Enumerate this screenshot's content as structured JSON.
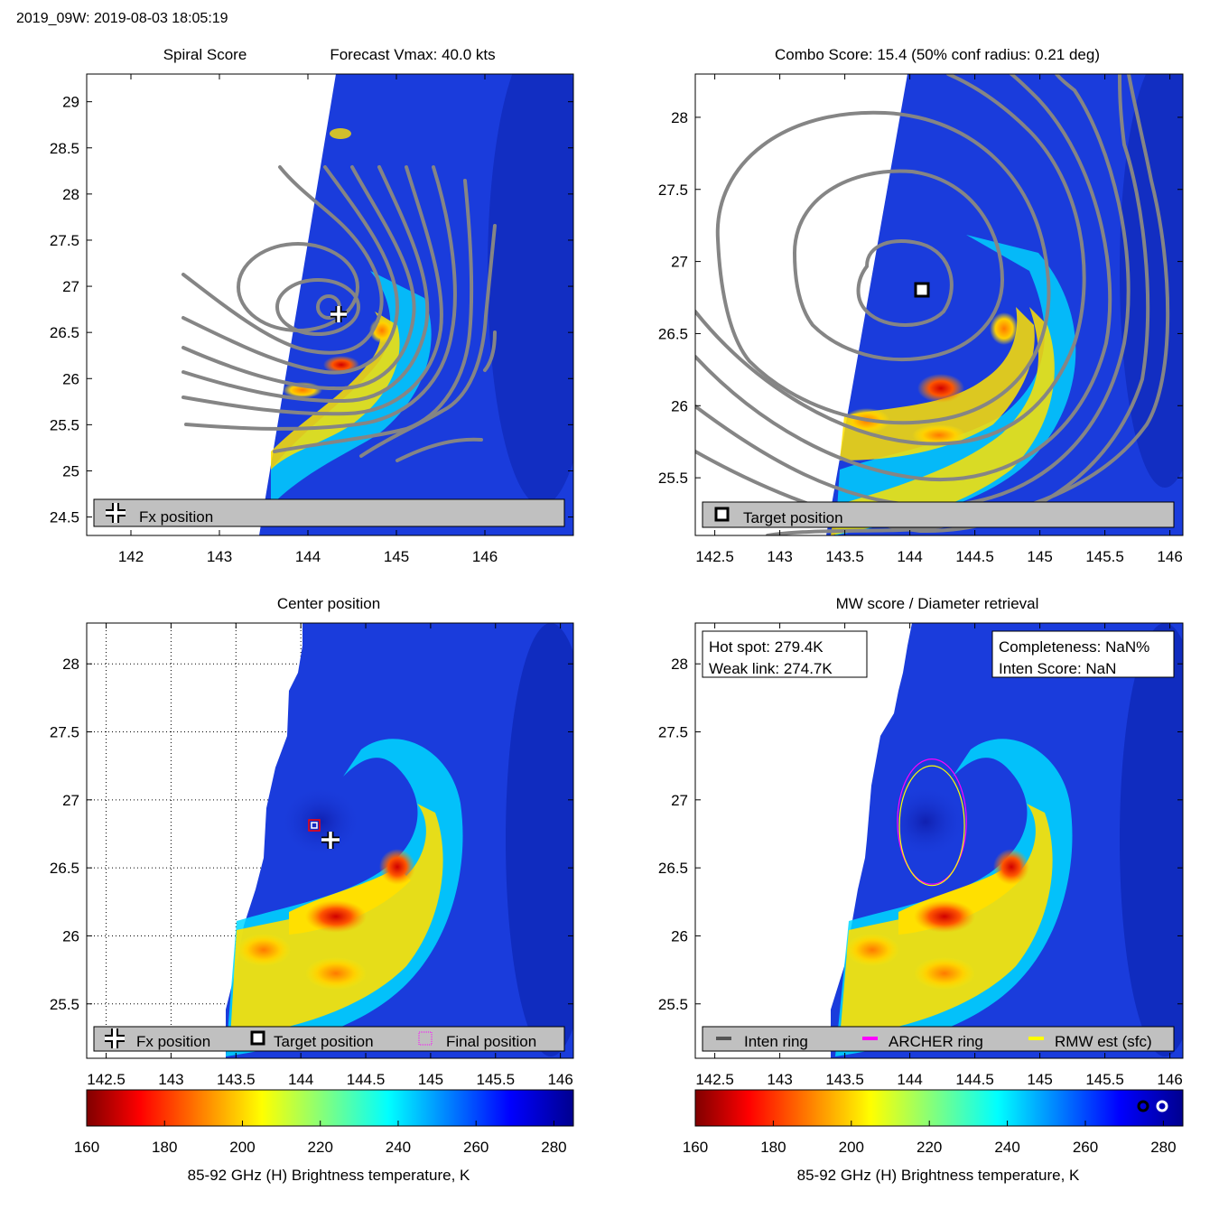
{
  "header": {
    "title": "2019_09W: 2019-08-03 18:05:19"
  },
  "colors": {
    "gray_contour": "#858585",
    "legend_bg": "#c0c0c0",
    "magenta": "#ff00ff",
    "yellow": "#ffff00"
  },
  "chart_data": [
    {
      "id": "spiral",
      "type": "heatmap",
      "title_left": "Spiral Score",
      "title_right": "Forecast Vmax: 40.0 kts",
      "xlim": [
        141.5,
        147.0
      ],
      "ylim": [
        24.3,
        29.3
      ],
      "xticks": [
        142,
        143,
        144,
        145,
        146
      ],
      "yticks": [
        29,
        28.5,
        28,
        27.5,
        27,
        26.5,
        26,
        25.5,
        25,
        24.5
      ],
      "markers": [
        {
          "kind": "fx-cross",
          "x": 144.3,
          "y": 26.7
        }
      ],
      "legend": [
        {
          "symbol": "fx-cross",
          "label": "Fx position"
        }
      ],
      "legend_position": "bottom"
    },
    {
      "id": "combo",
      "type": "heatmap",
      "title": "Combo Score: 15.4  (50% conf radius: 0.21 deg)",
      "xlim": [
        142.35,
        146.1
      ],
      "ylim": [
        25.1,
        28.3
      ],
      "xticks": [
        142.5,
        143,
        143.5,
        144,
        144.5,
        145,
        145.5,
        146
      ],
      "yticks": [
        28,
        27.5,
        27,
        26.5,
        26,
        25.5
      ],
      "markers": [
        {
          "kind": "target-square",
          "x": 144.15,
          "y": 26.82
        }
      ],
      "legend": [
        {
          "symbol": "target-square",
          "label": "Target position"
        }
      ],
      "legend_position": "bottom"
    },
    {
      "id": "center",
      "type": "heatmap",
      "title": "Center position",
      "xlim": [
        142.35,
        146.1
      ],
      "ylim": [
        25.1,
        28.3
      ],
      "xticks": [
        142.5,
        143,
        143.5,
        144,
        144.5,
        145,
        145.5,
        146
      ],
      "yticks": [
        28,
        27.5,
        27,
        26.5,
        26,
        25.5
      ],
      "grid": true,
      "markers": [
        {
          "kind": "final-square",
          "x": 144.15,
          "y": 26.82
        },
        {
          "kind": "fx-cross",
          "x": 144.3,
          "y": 26.7
        }
      ],
      "legend": [
        {
          "symbol": "fx-cross",
          "label": "Fx position"
        },
        {
          "symbol": "target-square",
          "label": "Target position"
        },
        {
          "symbol": "final-square",
          "label": "Final position"
        }
      ],
      "legend_position": "bottom",
      "colorbar": {
        "min": 160,
        "max": 285,
        "ticks": [
          160,
          180,
          200,
          220,
          240,
          260,
          280
        ],
        "label": "85-92 GHz (H) Brightness temperature, K"
      }
    },
    {
      "id": "mw",
      "type": "heatmap",
      "title": "MW score / Diameter retrieval",
      "xlim": [
        142.35,
        146.1
      ],
      "ylim": [
        25.1,
        28.3
      ],
      "xticks": [
        142.5,
        143,
        143.5,
        144,
        144.5,
        145,
        145.5,
        146
      ],
      "yticks": [
        28,
        27.5,
        27,
        26.5,
        26,
        25.5
      ],
      "info_left": [
        "Hot spot: 279.4K",
        "Weak link: 274.7K"
      ],
      "info_right": [
        "Completeness: NaN%",
        "Inten Score: NaN"
      ],
      "rings": [
        {
          "kind": "archer",
          "x": 144.17,
          "y": 26.84,
          "rx": 0.53,
          "ry": 0.46
        },
        {
          "kind": "rmw",
          "x": 144.17,
          "y": 26.81,
          "rx": 0.5,
          "ry": 0.44
        }
      ],
      "legend": [
        {
          "symbol": "inten-line",
          "label": "Inten ring"
        },
        {
          "symbol": "archer-line",
          "label": "ARCHER ring"
        },
        {
          "symbol": "rmw-line",
          "label": "RMW est (sfc)"
        }
      ],
      "legend_position": "bottom",
      "colorbar": {
        "min": 160,
        "max": 285,
        "ticks": [
          160,
          180,
          200,
          220,
          240,
          260,
          280
        ],
        "label": "85-92 GHz (H) Brightness temperature, K"
      }
    }
  ]
}
